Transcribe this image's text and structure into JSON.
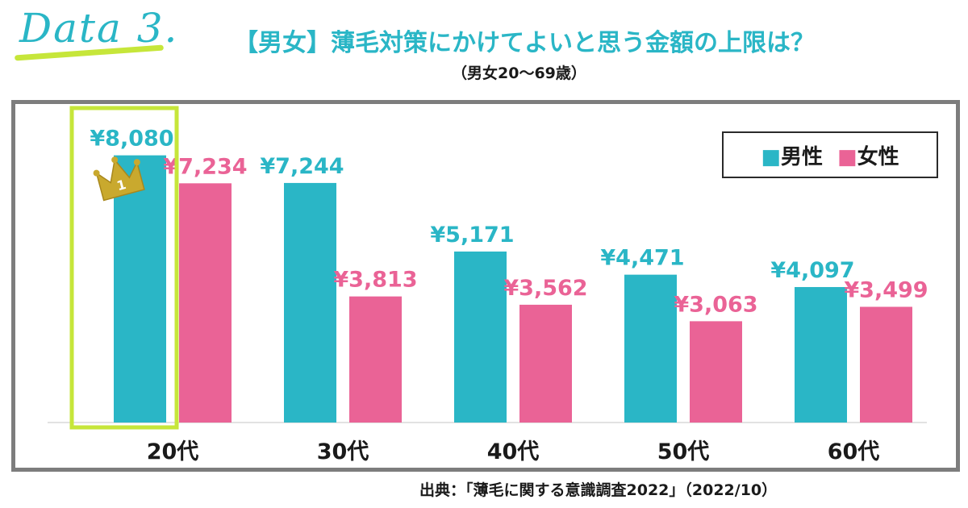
{
  "header": {
    "data_label": "Data 3.",
    "title": "【男女】薄毛対策にかけてよいと思う金額の上限は？",
    "subtitle": "（男女20〜69歳）"
  },
  "legend": {
    "male": "■男性",
    "female": "■女性"
  },
  "source": "出典：「薄毛に関する意識調査2022」（2022/10）",
  "colors": {
    "male": "#2ab6c6",
    "female": "#ea6396",
    "highlight": "#c6e63a",
    "crown": "#c9a92e",
    "frame": "#7d7d7d"
  },
  "chart_data": {
    "type": "bar",
    "categories": [
      "20代",
      "30代",
      "40代",
      "50代",
      "60代"
    ],
    "series": [
      {
        "name": "男性",
        "values": [
          8080,
          7244,
          5171,
          4471,
          4097
        ],
        "labels": [
          "¥8,080",
          "¥7,244",
          "¥5,171",
          "¥4,471",
          "¥4,097"
        ]
      },
      {
        "name": "女性",
        "values": [
          7234,
          3813,
          3562,
          3063,
          3499
        ],
        "labels": [
          "¥7,234",
          "¥3,813",
          "¥3,562",
          "¥3,063",
          "¥3,499"
        ]
      }
    ],
    "title": "【男女】薄毛対策にかけてよいと思う金額の上限は？",
    "xlabel": "",
    "ylabel": "",
    "ylim": [
      0,
      8900
    ],
    "grid": false,
    "legend_position": "top-right",
    "highlight": {
      "category": "20代",
      "rank_badge": "1"
    }
  }
}
